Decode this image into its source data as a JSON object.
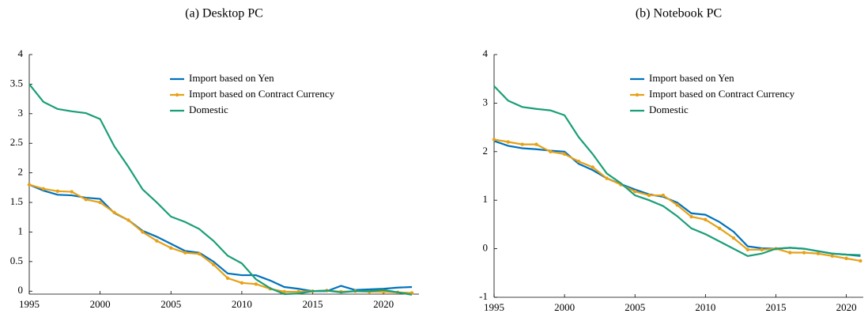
{
  "chart_data": [
    {
      "type": "line",
      "title": "(a) Desktop PC",
      "x": [
        1995,
        1996,
        1997,
        1998,
        1999,
        2000,
        2001,
        2002,
        2003,
        2004,
        2005,
        2006,
        2007,
        2008,
        2009,
        2010,
        2011,
        2012,
        2013,
        2014,
        2015,
        2016,
        2017,
        2018,
        2019,
        2020,
        2021,
        2022
      ],
      "series": [
        {
          "name": "Import based on Yen",
          "color": "#0072bd",
          "markers": false,
          "values": [
            1.8,
            1.7,
            1.63,
            1.62,
            1.58,
            1.56,
            1.32,
            1.2,
            1.02,
            0.92,
            0.8,
            0.68,
            0.65,
            0.5,
            0.3,
            0.27,
            0.27,
            0.18,
            0.07,
            0.04,
            0.0,
            0.0,
            0.09,
            0.02,
            0.03,
            0.04,
            0.06,
            0.07
          ]
        },
        {
          "name": "Import based on Contract Currency",
          "color": "#e6a117",
          "markers": true,
          "values": [
            1.8,
            1.73,
            1.69,
            1.68,
            1.55,
            1.5,
            1.33,
            1.2,
            1.0,
            0.85,
            0.73,
            0.65,
            0.63,
            0.45,
            0.22,
            0.14,
            0.12,
            0.04,
            -0.01,
            -0.01,
            0.0,
            0.01,
            -0.01,
            0.0,
            -0.01,
            -0.01,
            -0.02,
            -0.03
          ]
        },
        {
          "name": "Domestic",
          "color": "#1a9e77",
          "markers": false,
          "values": [
            3.5,
            3.2,
            3.08,
            3.04,
            3.01,
            2.91,
            2.45,
            2.1,
            1.72,
            1.5,
            1.26,
            1.17,
            1.05,
            0.85,
            0.6,
            0.47,
            0.2,
            0.05,
            -0.05,
            -0.04,
            0.0,
            0.01,
            -0.02,
            0.0,
            0.0,
            0.02,
            -0.02,
            -0.06
          ]
        }
      ],
      "xlim": [
        1995,
        2022.5
      ],
      "ylim": [
        -0.05,
        4
      ],
      "xticks": [
        1995,
        2000,
        2005,
        2010,
        2015,
        2020
      ],
      "yticks": [
        0,
        0.5,
        1,
        1.5,
        2,
        2.5,
        3,
        3.5,
        4
      ]
    },
    {
      "type": "line",
      "title": "(b) Notebook PC",
      "x": [
        1995,
        1996,
        1997,
        1998,
        1999,
        2000,
        2001,
        2002,
        2003,
        2004,
        2005,
        2006,
        2007,
        2008,
        2009,
        2010,
        2011,
        2012,
        2013,
        2014,
        2015,
        2016,
        2017,
        2018,
        2019,
        2020,
        2021
      ],
      "series": [
        {
          "name": "Import based on Yen",
          "color": "#0072bd",
          "markers": false,
          "values": [
            2.22,
            2.12,
            2.07,
            2.05,
            2.02,
            2.0,
            1.75,
            1.62,
            1.45,
            1.33,
            1.22,
            1.12,
            1.07,
            0.95,
            0.73,
            0.7,
            0.55,
            0.35,
            0.05,
            0.01,
            0.0,
            0.02,
            0.0,
            -0.05,
            -0.1,
            -0.12,
            -0.15
          ]
        },
        {
          "name": "Import based on Contract Currency",
          "color": "#e6a117",
          "markers": true,
          "values": [
            2.25,
            2.2,
            2.15,
            2.15,
            2.0,
            1.95,
            1.8,
            1.68,
            1.45,
            1.32,
            1.18,
            1.1,
            1.1,
            0.9,
            0.66,
            0.6,
            0.42,
            0.22,
            -0.02,
            -0.02,
            0.0,
            -0.08,
            -0.08,
            -0.1,
            -0.15,
            -0.2,
            -0.25
          ]
        },
        {
          "name": "Domestic",
          "color": "#1a9e77",
          "markers": false,
          "values": [
            3.35,
            3.05,
            2.92,
            2.88,
            2.85,
            2.75,
            2.3,
            1.95,
            1.55,
            1.35,
            1.1,
            1.0,
            0.88,
            0.67,
            0.42,
            0.3,
            0.15,
            0.0,
            -0.15,
            -0.1,
            0.0,
            0.02,
            0.0,
            -0.05,
            -0.1,
            -0.12,
            -0.13
          ]
        }
      ],
      "xlim": [
        1995,
        2021.2
      ],
      "ylim": [
        -1,
        4
      ],
      "xticks": [
        1995,
        2000,
        2005,
        2010,
        2015,
        2020
      ],
      "yticks": [
        -1,
        0,
        1,
        2,
        3,
        4
      ]
    }
  ]
}
